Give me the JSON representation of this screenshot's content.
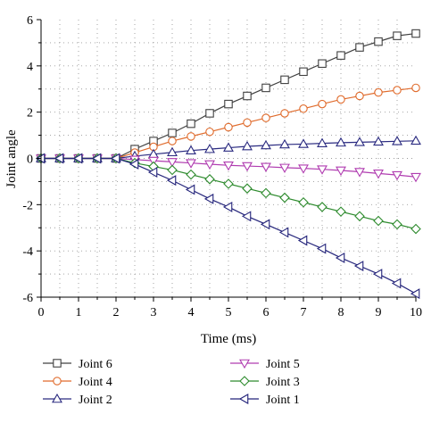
{
  "chart_data": {
    "type": "line",
    "title": "",
    "xlabel": "Time (ms)",
    "ylabel": "Joint angle",
    "xlim": [
      0,
      10
    ],
    "ylim": [
      -6,
      6
    ],
    "xticks": [
      "0",
      "1",
      "2",
      "3",
      "4",
      "5",
      "6",
      "7",
      "8",
      "9",
      "10"
    ],
    "yticks": [
      "-6",
      "-4",
      "-2",
      "0",
      "2",
      "4",
      "6"
    ],
    "minor_xticks": [
      0.5,
      1.5,
      2.5,
      3.5,
      4.5,
      5.5,
      6.5,
      7.5,
      8.5,
      9.5
    ],
    "minor_yticks": [
      -5,
      -3,
      -1,
      1,
      3,
      5
    ],
    "grid": true,
    "legend_position": "bottom",
    "x": [
      0,
      0.5,
      1,
      1.5,
      2,
      2.5,
      3,
      3.5,
      4,
      4.5,
      5,
      5.5,
      6,
      6.5,
      7,
      7.5,
      8,
      8.5,
      9,
      9.5,
      10
    ],
    "series": [
      {
        "name": "Joint 6",
        "color": "#404040",
        "marker": "square",
        "values": [
          0,
          0,
          0,
          0,
          0,
          0.4,
          0.75,
          1.1,
          1.5,
          1.95,
          2.35,
          2.7,
          3.05,
          3.4,
          3.75,
          4.1,
          4.45,
          4.8,
          5.05,
          5.3,
          5.4
        ]
      },
      {
        "name": "Joint 4",
        "color": "#e06b2c",
        "marker": "circle",
        "values": [
          0,
          0,
          0,
          0,
          0,
          0.25,
          0.5,
          0.75,
          0.95,
          1.15,
          1.35,
          1.55,
          1.75,
          1.95,
          2.15,
          2.35,
          2.55,
          2.7,
          2.85,
          2.95,
          3.05
        ]
      },
      {
        "name": "Joint 2",
        "color": "#2a2a80",
        "marker": "triangle-up",
        "values": [
          0,
          0,
          0,
          0,
          0,
          0.1,
          0.18,
          0.26,
          0.34,
          0.4,
          0.46,
          0.52,
          0.56,
          0.6,
          0.62,
          0.65,
          0.68,
          0.7,
          0.72,
          0.74,
          0.76
        ]
      },
      {
        "name": "Joint 5",
        "color": "#b03cb0",
        "marker": "triangle-down",
        "values": [
          0,
          0,
          0,
          0,
          0,
          -0.05,
          -0.1,
          -0.15,
          -0.2,
          -0.25,
          -0.3,
          -0.33,
          -0.36,
          -0.4,
          -0.43,
          -0.47,
          -0.52,
          -0.58,
          -0.65,
          -0.72,
          -0.8
        ]
      },
      {
        "name": "Joint 3",
        "color": "#2e8b2e",
        "marker": "diamond",
        "values": [
          0,
          0,
          0,
          0,
          0,
          -0.2,
          -0.35,
          -0.5,
          -0.7,
          -0.9,
          -1.1,
          -1.3,
          -1.5,
          -1.7,
          -1.9,
          -2.1,
          -2.3,
          -2.5,
          -2.7,
          -2.85,
          -3.05
        ]
      },
      {
        "name": "Joint 1",
        "color": "#23237a",
        "marker": "triangle-left",
        "values": [
          0,
          0,
          0,
          0,
          0,
          -0.25,
          -0.6,
          -0.95,
          -1.35,
          -1.75,
          -2.1,
          -2.5,
          -2.85,
          -3.2,
          -3.55,
          -3.9,
          -4.3,
          -4.65,
          -5.0,
          -5.4,
          -5.85
        ]
      }
    ],
    "legend_layout": [
      [
        "Joint 6",
        "Joint 5"
      ],
      [
        "Joint 4",
        "Joint 3"
      ],
      [
        "Joint 2",
        "Joint 1"
      ]
    ]
  }
}
